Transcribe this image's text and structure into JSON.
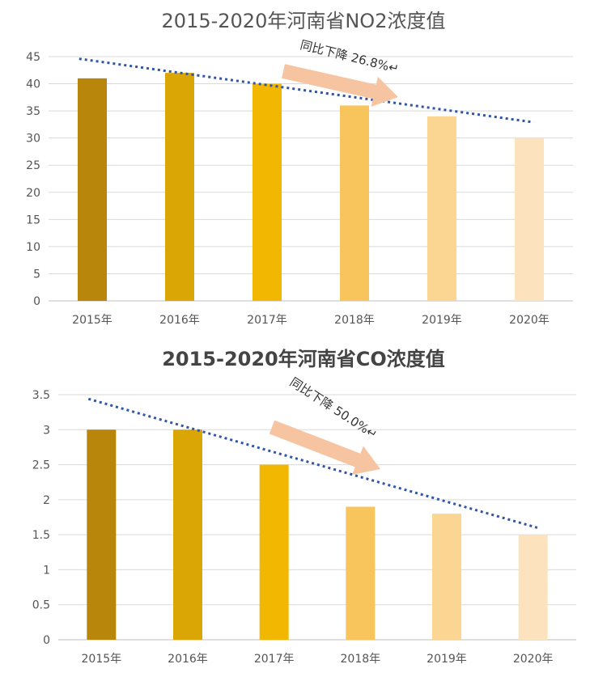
{
  "colors": [
    "#b8860b",
    "#daa606",
    "#f2b700",
    "#f8c45c",
    "#fbd592",
    "#fde3bd"
  ],
  "chart_data": [
    {
      "type": "bar",
      "title": "2015-2020年河南省NO2浓度值",
      "categories": [
        "2015年",
        "2016年",
        "2017年",
        "2018年",
        "2019年",
        "2020年"
      ],
      "values": [
        41,
        42,
        40,
        36,
        34,
        30
      ],
      "ylim": [
        0,
        45
      ],
      "yticks": [
        0,
        5,
        10,
        15,
        20,
        25,
        30,
        35,
        40,
        45
      ],
      "ytick_labels": [
        "0",
        "5",
        "10",
        "15",
        "20",
        "25",
        "30",
        "35",
        "40",
        "45"
      ],
      "xlabel": "",
      "ylabel": "",
      "grid": true,
      "trendline": {
        "start": 44.6,
        "end": 32.9
      },
      "annotation": "同比下降 26.8%↵"
    },
    {
      "type": "bar",
      "title": "2015-2020年河南省CO浓度值",
      "categories": [
        "2015年",
        "2016年",
        "2017年",
        "2018年",
        "2019年",
        "2020年"
      ],
      "values": [
        3,
        3,
        2.5,
        1.9,
        1.8,
        1.5
      ],
      "ylim": [
        0,
        3.5
      ],
      "yticks": [
        0,
        0.5,
        1,
        1.5,
        2,
        2.5,
        3,
        3.5
      ],
      "ytick_labels": [
        "0",
        "0.5",
        "1",
        "1.5",
        "2",
        "2.5",
        "3",
        "3.5"
      ],
      "xlabel": "",
      "ylabel": "",
      "grid": true,
      "trendline": {
        "start": 3.44,
        "end": 1.6
      },
      "annotation": "同比下降 50.0%↵"
    }
  ]
}
